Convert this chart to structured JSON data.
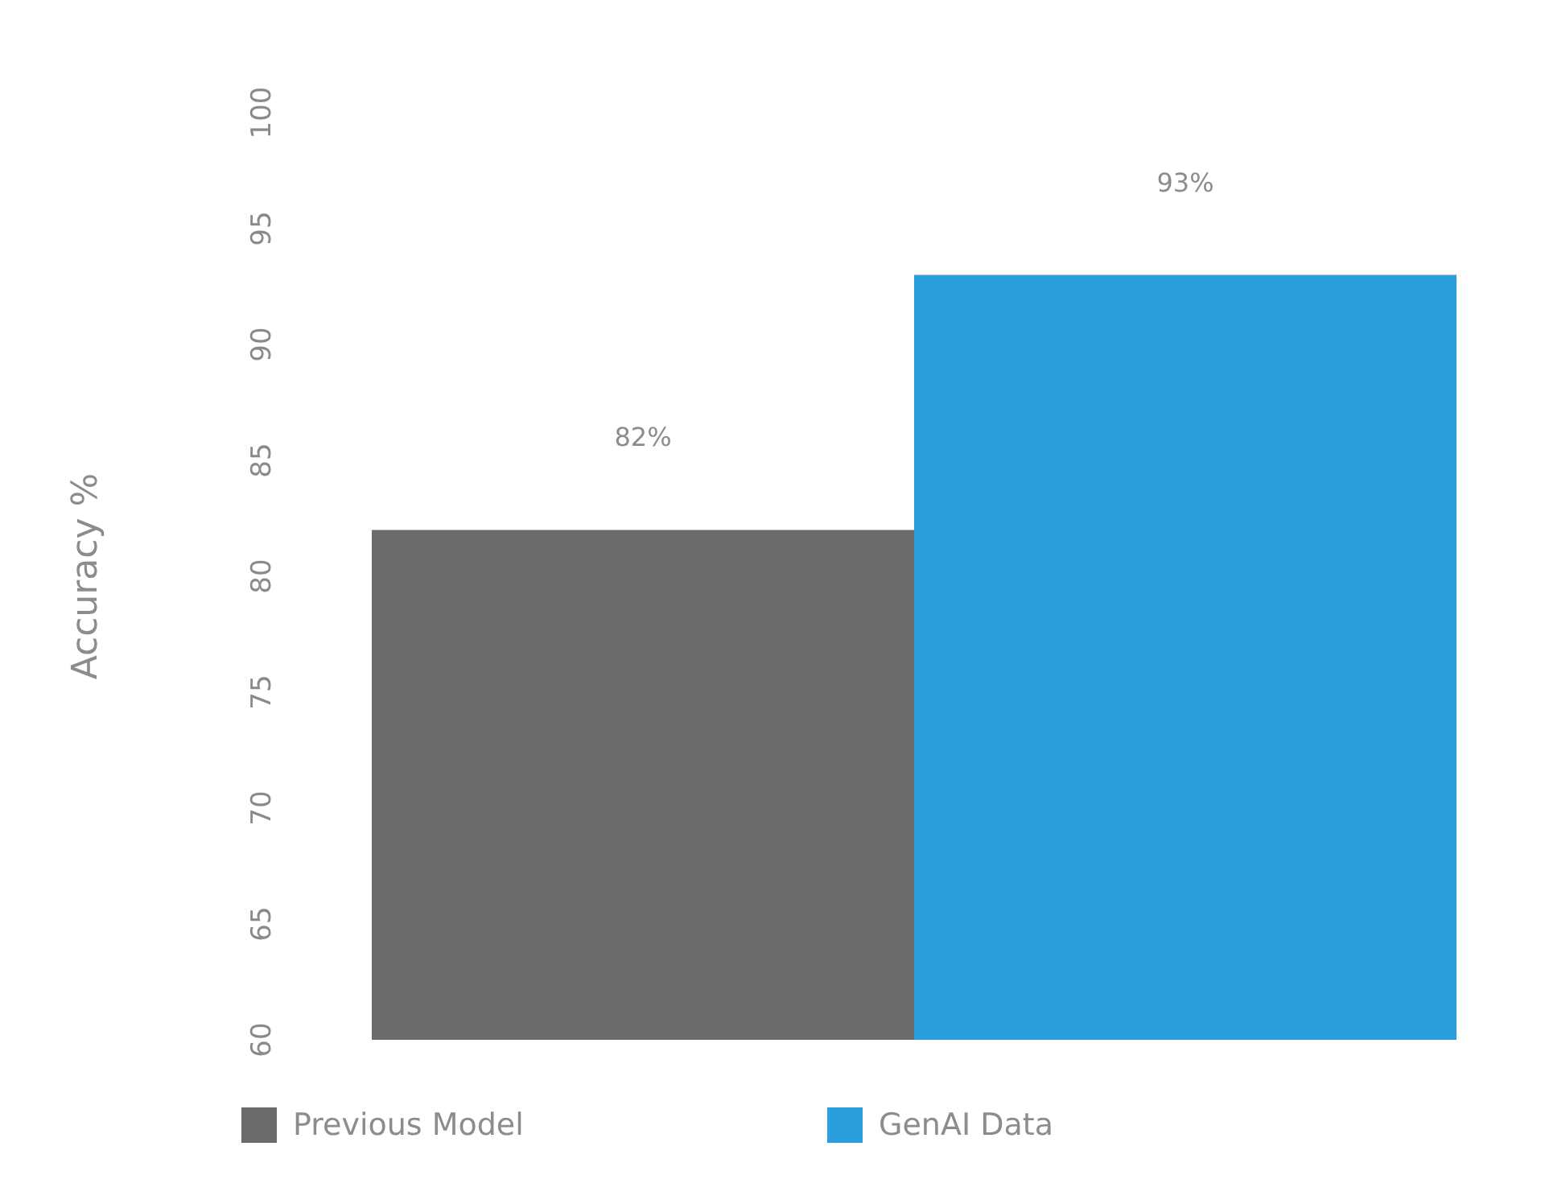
{
  "chart_data": {
    "type": "bar",
    "ylabel": "Accuracy %",
    "categories": [
      null
    ],
    "series": [
      {
        "name": "Previous Model",
        "color": "#6b6b6b",
        "values": [
          82
        ],
        "value_labels": [
          "82%"
        ]
      },
      {
        "name": "GenAI Data",
        "color": "#2a9fdb",
        "values": [
          93
        ],
        "value_labels": [
          "93%"
        ]
      }
    ],
    "ylim": [
      60,
      100
    ],
    "yticks": [
      60,
      65,
      70,
      75,
      80,
      85,
      90,
      95,
      100
    ],
    "grid": false,
    "legend": "bottom"
  }
}
